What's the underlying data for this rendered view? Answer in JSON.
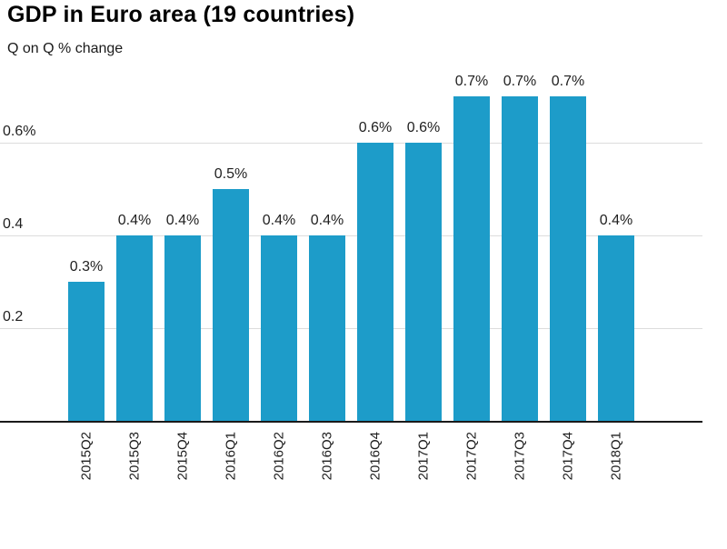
{
  "chart_data": {
    "type": "bar",
    "title": "GDP in Euro area (19 countries)",
    "subtitle": "Q on Q % change",
    "categories": [
      "2015Q2",
      "2015Q3",
      "2015Q4",
      "2016Q1",
      "2016Q2",
      "2016Q3",
      "2016Q4",
      "2017Q1",
      "2017Q2",
      "2017Q3",
      "2017Q4",
      "2018Q1"
    ],
    "values": [
      0.3,
      0.4,
      0.4,
      0.5,
      0.4,
      0.4,
      0.6,
      0.6,
      0.7,
      0.7,
      0.7,
      0.4
    ],
    "bar_labels": [
      "0.3%",
      "0.4%",
      "0.4%",
      "0.5%",
      "0.4%",
      "0.4%",
      "0.6%",
      "0.6%",
      "0.7%",
      "0.7%",
      "0.7%",
      "0.4%"
    ],
    "xlabel": "",
    "ylabel": "Q on Q % change",
    "ylim": [
      0,
      0.73
    ],
    "yticks": [
      {
        "value": 0.6,
        "label": "0.6%"
      },
      {
        "value": 0.4,
        "label": "0.4"
      },
      {
        "value": 0.2,
        "label": "0.2"
      }
    ],
    "grid": "horizontal",
    "legend": "none",
    "colors": {
      "bar": "#1d9cc9",
      "gridline": "#dcdcdc",
      "axis_line": "#1a1a1a",
      "text": "#1f1f1f",
      "background": "#ffffff"
    }
  }
}
